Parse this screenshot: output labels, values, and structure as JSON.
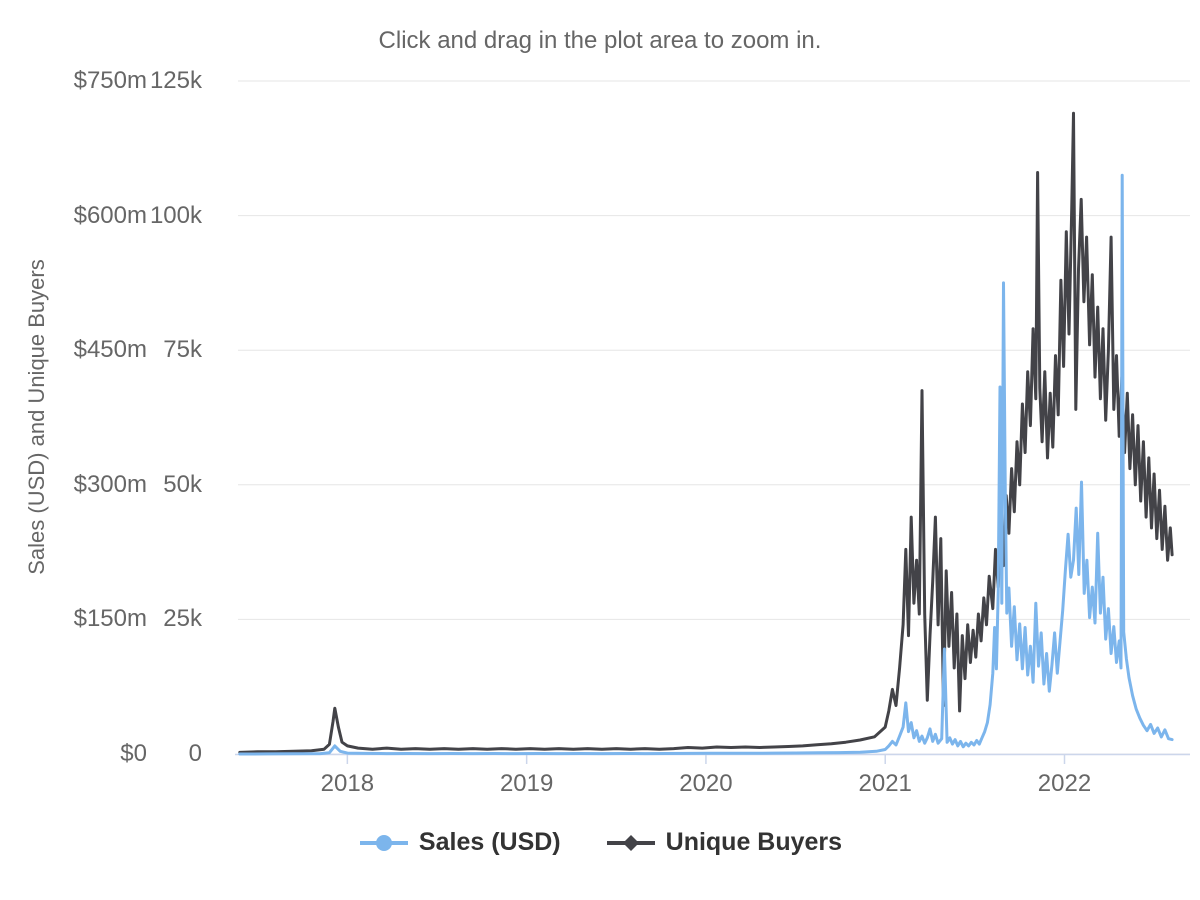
{
  "theme": {
    "background": "#ffffff",
    "title_color": "#666666",
    "label_color": "#666666",
    "axis_title_color": "#666666",
    "legend_text_color": "#333333",
    "grid_color": "#e6e6e6",
    "axis_line_color": "#ccd6eb"
  },
  "chart_data": {
    "type": "line",
    "title": "Click and drag in the plot area to zoom in.",
    "ylabel": "Sales (USD) and Unique Buyers",
    "grid": "horizontal",
    "legend_position": "bottom",
    "x_axis": {
      "range": [
        2017.39,
        2022.7
      ],
      "ticks": [
        2018,
        2019,
        2020,
        2021,
        2022
      ],
      "labels": [
        "2018",
        "2019",
        "2020",
        "2021",
        "2022"
      ]
    },
    "y_axis_sales": {
      "labels": [
        "$0",
        "$150m",
        "$300m",
        "$450m",
        "$600m",
        "$750m"
      ],
      "range_millions_usd": [
        0,
        750
      ]
    },
    "y_axis_buyers": {
      "labels": [
        "0",
        "25k",
        "50k",
        "75k",
        "100k",
        "125k"
      ],
      "range_thousands": [
        0,
        125
      ]
    },
    "series": [
      {
        "name": "Sales (USD)",
        "color": "#7cb5ec",
        "marker": "circle",
        "axis": "sales",
        "units": "million USD",
        "points": [
          [
            2017.4,
            0.05
          ],
          [
            2017.55,
            0.1
          ],
          [
            2017.7,
            0.2
          ],
          [
            2017.85,
            0.4
          ],
          [
            2017.9,
            1.5
          ],
          [
            2017.93,
            9
          ],
          [
            2017.96,
            3
          ],
          [
            2018,
            1
          ],
          [
            2018.1,
            0.7
          ],
          [
            2018.22,
            0.5
          ],
          [
            2018.34,
            0.6
          ],
          [
            2018.46,
            0.5
          ],
          [
            2018.58,
            0.6
          ],
          [
            2018.7,
            0.5
          ],
          [
            2018.82,
            0.6
          ],
          [
            2018.94,
            0.5
          ],
          [
            2019.06,
            0.6
          ],
          [
            2019.18,
            0.5
          ],
          [
            2019.3,
            0.6
          ],
          [
            2019.42,
            0.5
          ],
          [
            2019.54,
            0.6
          ],
          [
            2019.66,
            0.5
          ],
          [
            2019.78,
            0.6
          ],
          [
            2019.9,
            0.7
          ],
          [
            2020.02,
            0.8
          ],
          [
            2020.14,
            0.9
          ],
          [
            2020.26,
            0.8
          ],
          [
            2020.38,
            1
          ],
          [
            2020.5,
            1.1
          ],
          [
            2020.62,
            1.3
          ],
          [
            2020.74,
            1.6
          ],
          [
            2020.86,
            2
          ],
          [
            2020.95,
            3
          ],
          [
            2021,
            5
          ],
          [
            2021.02,
            9
          ],
          [
            2021.04,
            14
          ],
          [
            2021.06,
            10
          ],
          [
            2021.08,
            20
          ],
          [
            2021.1,
            30
          ],
          [
            2021.115,
            57
          ],
          [
            2021.13,
            25
          ],
          [
            2021.145,
            35
          ],
          [
            2021.16,
            18
          ],
          [
            2021.175,
            26
          ],
          [
            2021.19,
            14
          ],
          [
            2021.205,
            20
          ],
          [
            2021.22,
            12
          ],
          [
            2021.235,
            18
          ],
          [
            2021.25,
            28
          ],
          [
            2021.265,
            14
          ],
          [
            2021.28,
            22
          ],
          [
            2021.295,
            12
          ],
          [
            2021.315,
            17
          ],
          [
            2021.33,
            117
          ],
          [
            2021.345,
            13
          ],
          [
            2021.36,
            18
          ],
          [
            2021.375,
            11
          ],
          [
            2021.39,
            16
          ],
          [
            2021.405,
            9
          ],
          [
            2021.42,
            14
          ],
          [
            2021.435,
            8
          ],
          [
            2021.45,
            12
          ],
          [
            2021.465,
            9
          ],
          [
            2021.48,
            13
          ],
          [
            2021.495,
            10
          ],
          [
            2021.51,
            15
          ],
          [
            2021.525,
            11
          ],
          [
            2021.54,
            18
          ],
          [
            2021.555,
            25
          ],
          [
            2021.57,
            35
          ],
          [
            2021.585,
            55
          ],
          [
            2021.6,
            90
          ],
          [
            2021.61,
            141
          ],
          [
            2021.62,
            95
          ],
          [
            2021.63,
            180
          ],
          [
            2021.64,
            409
          ],
          [
            2021.65,
            168
          ],
          [
            2021.66,
            525
          ],
          [
            2021.67,
            290
          ],
          [
            2021.678,
            157
          ],
          [
            2021.69,
            185
          ],
          [
            2021.705,
            120
          ],
          [
            2021.72,
            164
          ],
          [
            2021.735,
            105
          ],
          [
            2021.75,
            145
          ],
          [
            2021.765,
            95
          ],
          [
            2021.78,
            141
          ],
          [
            2021.795,
            88
          ],
          [
            2021.81,
            120
          ],
          [
            2021.825,
            80
          ],
          [
            2021.84,
            168
          ],
          [
            2021.855,
            98
          ],
          [
            2021.87,
            135
          ],
          [
            2021.885,
            78
          ],
          [
            2021.9,
            112
          ],
          [
            2021.915,
            70
          ],
          [
            2021.93,
            100
          ],
          [
            2021.945,
            135
          ],
          [
            2021.96,
            90
          ],
          [
            2021.975,
            125
          ],
          [
            2021.99,
            160
          ],
          [
            2022.005,
            205
          ],
          [
            2022.02,
            245
          ],
          [
            2022.035,
            197
          ],
          [
            2022.05,
            216
          ],
          [
            2022.065,
            274
          ],
          [
            2022.08,
            200
          ],
          [
            2022.095,
            303
          ],
          [
            2022.11,
            179
          ],
          [
            2022.125,
            216
          ],
          [
            2022.14,
            152
          ],
          [
            2022.155,
            186
          ],
          [
            2022.17,
            146
          ],
          [
            2022.185,
            246
          ],
          [
            2022.2,
            157
          ],
          [
            2022.215,
            197
          ],
          [
            2022.23,
            128
          ],
          [
            2022.245,
            162
          ],
          [
            2022.26,
            112
          ],
          [
            2022.275,
            142
          ],
          [
            2022.29,
            102
          ],
          [
            2022.305,
            126
          ],
          [
            2022.315,
            96
          ],
          [
            2022.322,
            645
          ],
          [
            2022.33,
            136
          ],
          [
            2022.345,
            106
          ],
          [
            2022.36,
            85
          ],
          [
            2022.38,
            65
          ],
          [
            2022.4,
            50
          ],
          [
            2022.42,
            40
          ],
          [
            2022.44,
            32
          ],
          [
            2022.46,
            26
          ],
          [
            2022.48,
            33
          ],
          [
            2022.5,
            23
          ],
          [
            2022.52,
            29
          ],
          [
            2022.54,
            19
          ],
          [
            2022.56,
            27
          ],
          [
            2022.58,
            17
          ],
          [
            2022.6,
            16
          ]
        ]
      },
      {
        "name": "Unique Buyers",
        "color": "#434348",
        "marker": "diamond",
        "axis": "buyers",
        "units": "thousand buyers",
        "points": [
          [
            2017.4,
            0.3
          ],
          [
            2017.5,
            0.4
          ],
          [
            2017.6,
            0.4
          ],
          [
            2017.7,
            0.5
          ],
          [
            2017.8,
            0.6
          ],
          [
            2017.87,
            0.9
          ],
          [
            2017.9,
            1.8
          ],
          [
            2017.92,
            6
          ],
          [
            2017.93,
            8.5
          ],
          [
            2017.95,
            5
          ],
          [
            2017.97,
            2.2
          ],
          [
            2018,
            1.5
          ],
          [
            2018.06,
            1.1
          ],
          [
            2018.14,
            0.9
          ],
          [
            2018.22,
            1.1
          ],
          [
            2018.3,
            0.9
          ],
          [
            2018.38,
            1
          ],
          [
            2018.46,
            0.9
          ],
          [
            2018.54,
            1
          ],
          [
            2018.62,
            0.9
          ],
          [
            2018.7,
            1
          ],
          [
            2018.78,
            0.9
          ],
          [
            2018.86,
            1
          ],
          [
            2018.94,
            0.9
          ],
          [
            2019.02,
            1
          ],
          [
            2019.1,
            0.9
          ],
          [
            2019.18,
            1
          ],
          [
            2019.26,
            0.9
          ],
          [
            2019.34,
            1
          ],
          [
            2019.42,
            0.9
          ],
          [
            2019.5,
            1
          ],
          [
            2019.58,
            0.9
          ],
          [
            2019.66,
            1
          ],
          [
            2019.74,
            0.9
          ],
          [
            2019.82,
            1
          ],
          [
            2019.9,
            1.2
          ],
          [
            2019.98,
            1.1
          ],
          [
            2020.06,
            1.3
          ],
          [
            2020.14,
            1.2
          ],
          [
            2020.22,
            1.3
          ],
          [
            2020.3,
            1.2
          ],
          [
            2020.38,
            1.3
          ],
          [
            2020.46,
            1.4
          ],
          [
            2020.54,
            1.5
          ],
          [
            2020.62,
            1.7
          ],
          [
            2020.7,
            1.9
          ],
          [
            2020.78,
            2.2
          ],
          [
            2020.86,
            2.6
          ],
          [
            2020.94,
            3.2
          ],
          [
            2021,
            5
          ],
          [
            2021.02,
            8
          ],
          [
            2021.04,
            12
          ],
          [
            2021.06,
            9
          ],
          [
            2021.08,
            16
          ],
          [
            2021.1,
            24
          ],
          [
            2021.115,
            38
          ],
          [
            2021.13,
            22
          ],
          [
            2021.145,
            44
          ],
          [
            2021.16,
            28
          ],
          [
            2021.175,
            36
          ],
          [
            2021.19,
            26
          ],
          [
            2021.205,
            67.5
          ],
          [
            2021.22,
            26
          ],
          [
            2021.235,
            10
          ],
          [
            2021.25,
            22
          ],
          [
            2021.265,
            32
          ],
          [
            2021.28,
            44
          ],
          [
            2021.295,
            24
          ],
          [
            2021.31,
            40
          ],
          [
            2021.325,
            9
          ],
          [
            2021.34,
            34
          ],
          [
            2021.355,
            20
          ],
          [
            2021.37,
            30
          ],
          [
            2021.385,
            16
          ],
          [
            2021.4,
            26
          ],
          [
            2021.415,
            8
          ],
          [
            2021.43,
            22
          ],
          [
            2021.445,
            14
          ],
          [
            2021.46,
            24
          ],
          [
            2021.475,
            17
          ],
          [
            2021.49,
            23
          ],
          [
            2021.505,
            18
          ],
          [
            2021.52,
            26
          ],
          [
            2021.535,
            21
          ],
          [
            2021.55,
            29
          ],
          [
            2021.565,
            24
          ],
          [
            2021.58,
            33
          ],
          [
            2021.6,
            27
          ],
          [
            2021.615,
            38
          ],
          [
            2021.63,
            31
          ],
          [
            2021.645,
            42
          ],
          [
            2021.66,
            35
          ],
          [
            2021.675,
            48
          ],
          [
            2021.69,
            41
          ],
          [
            2021.705,
            53
          ],
          [
            2021.72,
            45
          ],
          [
            2021.735,
            58
          ],
          [
            2021.75,
            50
          ],
          [
            2021.765,
            65
          ],
          [
            2021.78,
            56
          ],
          [
            2021.795,
            71
          ],
          [
            2021.81,
            61
          ],
          [
            2021.825,
            79
          ],
          [
            2021.84,
            66
          ],
          [
            2021.85,
            108
          ],
          [
            2021.862,
            68
          ],
          [
            2021.875,
            58
          ],
          [
            2021.89,
            71
          ],
          [
            2021.905,
            55
          ],
          [
            2021.92,
            67
          ],
          [
            2021.935,
            57
          ],
          [
            2021.95,
            74
          ],
          [
            2021.965,
            63
          ],
          [
            2021.98,
            88
          ],
          [
            2021.995,
            72
          ],
          [
            2022.01,
            97
          ],
          [
            2022.025,
            78
          ],
          [
            2022.04,
            101
          ],
          [
            2022.05,
            119
          ],
          [
            2022.063,
            64
          ],
          [
            2022.078,
            90
          ],
          [
            2022.093,
            103
          ],
          [
            2022.108,
            84
          ],
          [
            2022.123,
            96
          ],
          [
            2022.14,
            76
          ],
          [
            2022.155,
            89
          ],
          [
            2022.17,
            70
          ],
          [
            2022.185,
            83
          ],
          [
            2022.2,
            66
          ],
          [
            2022.215,
            79
          ],
          [
            2022.23,
            62
          ],
          [
            2022.245,
            75
          ],
          [
            2022.26,
            96
          ],
          [
            2022.275,
            64
          ],
          [
            2022.29,
            74
          ],
          [
            2022.305,
            59
          ],
          [
            2022.32,
            70
          ],
          [
            2022.335,
            56
          ],
          [
            2022.35,
            67
          ],
          [
            2022.365,
            53
          ],
          [
            2022.38,
            63
          ],
          [
            2022.395,
            50
          ],
          [
            2022.41,
            61
          ],
          [
            2022.425,
            47
          ],
          [
            2022.44,
            58
          ],
          [
            2022.455,
            44
          ],
          [
            2022.47,
            55
          ],
          [
            2022.485,
            42
          ],
          [
            2022.5,
            52
          ],
          [
            2022.515,
            40
          ],
          [
            2022.53,
            49
          ],
          [
            2022.545,
            38
          ],
          [
            2022.56,
            46
          ],
          [
            2022.575,
            36
          ],
          [
            2022.59,
            42
          ],
          [
            2022.6,
            37
          ]
        ]
      }
    ]
  }
}
